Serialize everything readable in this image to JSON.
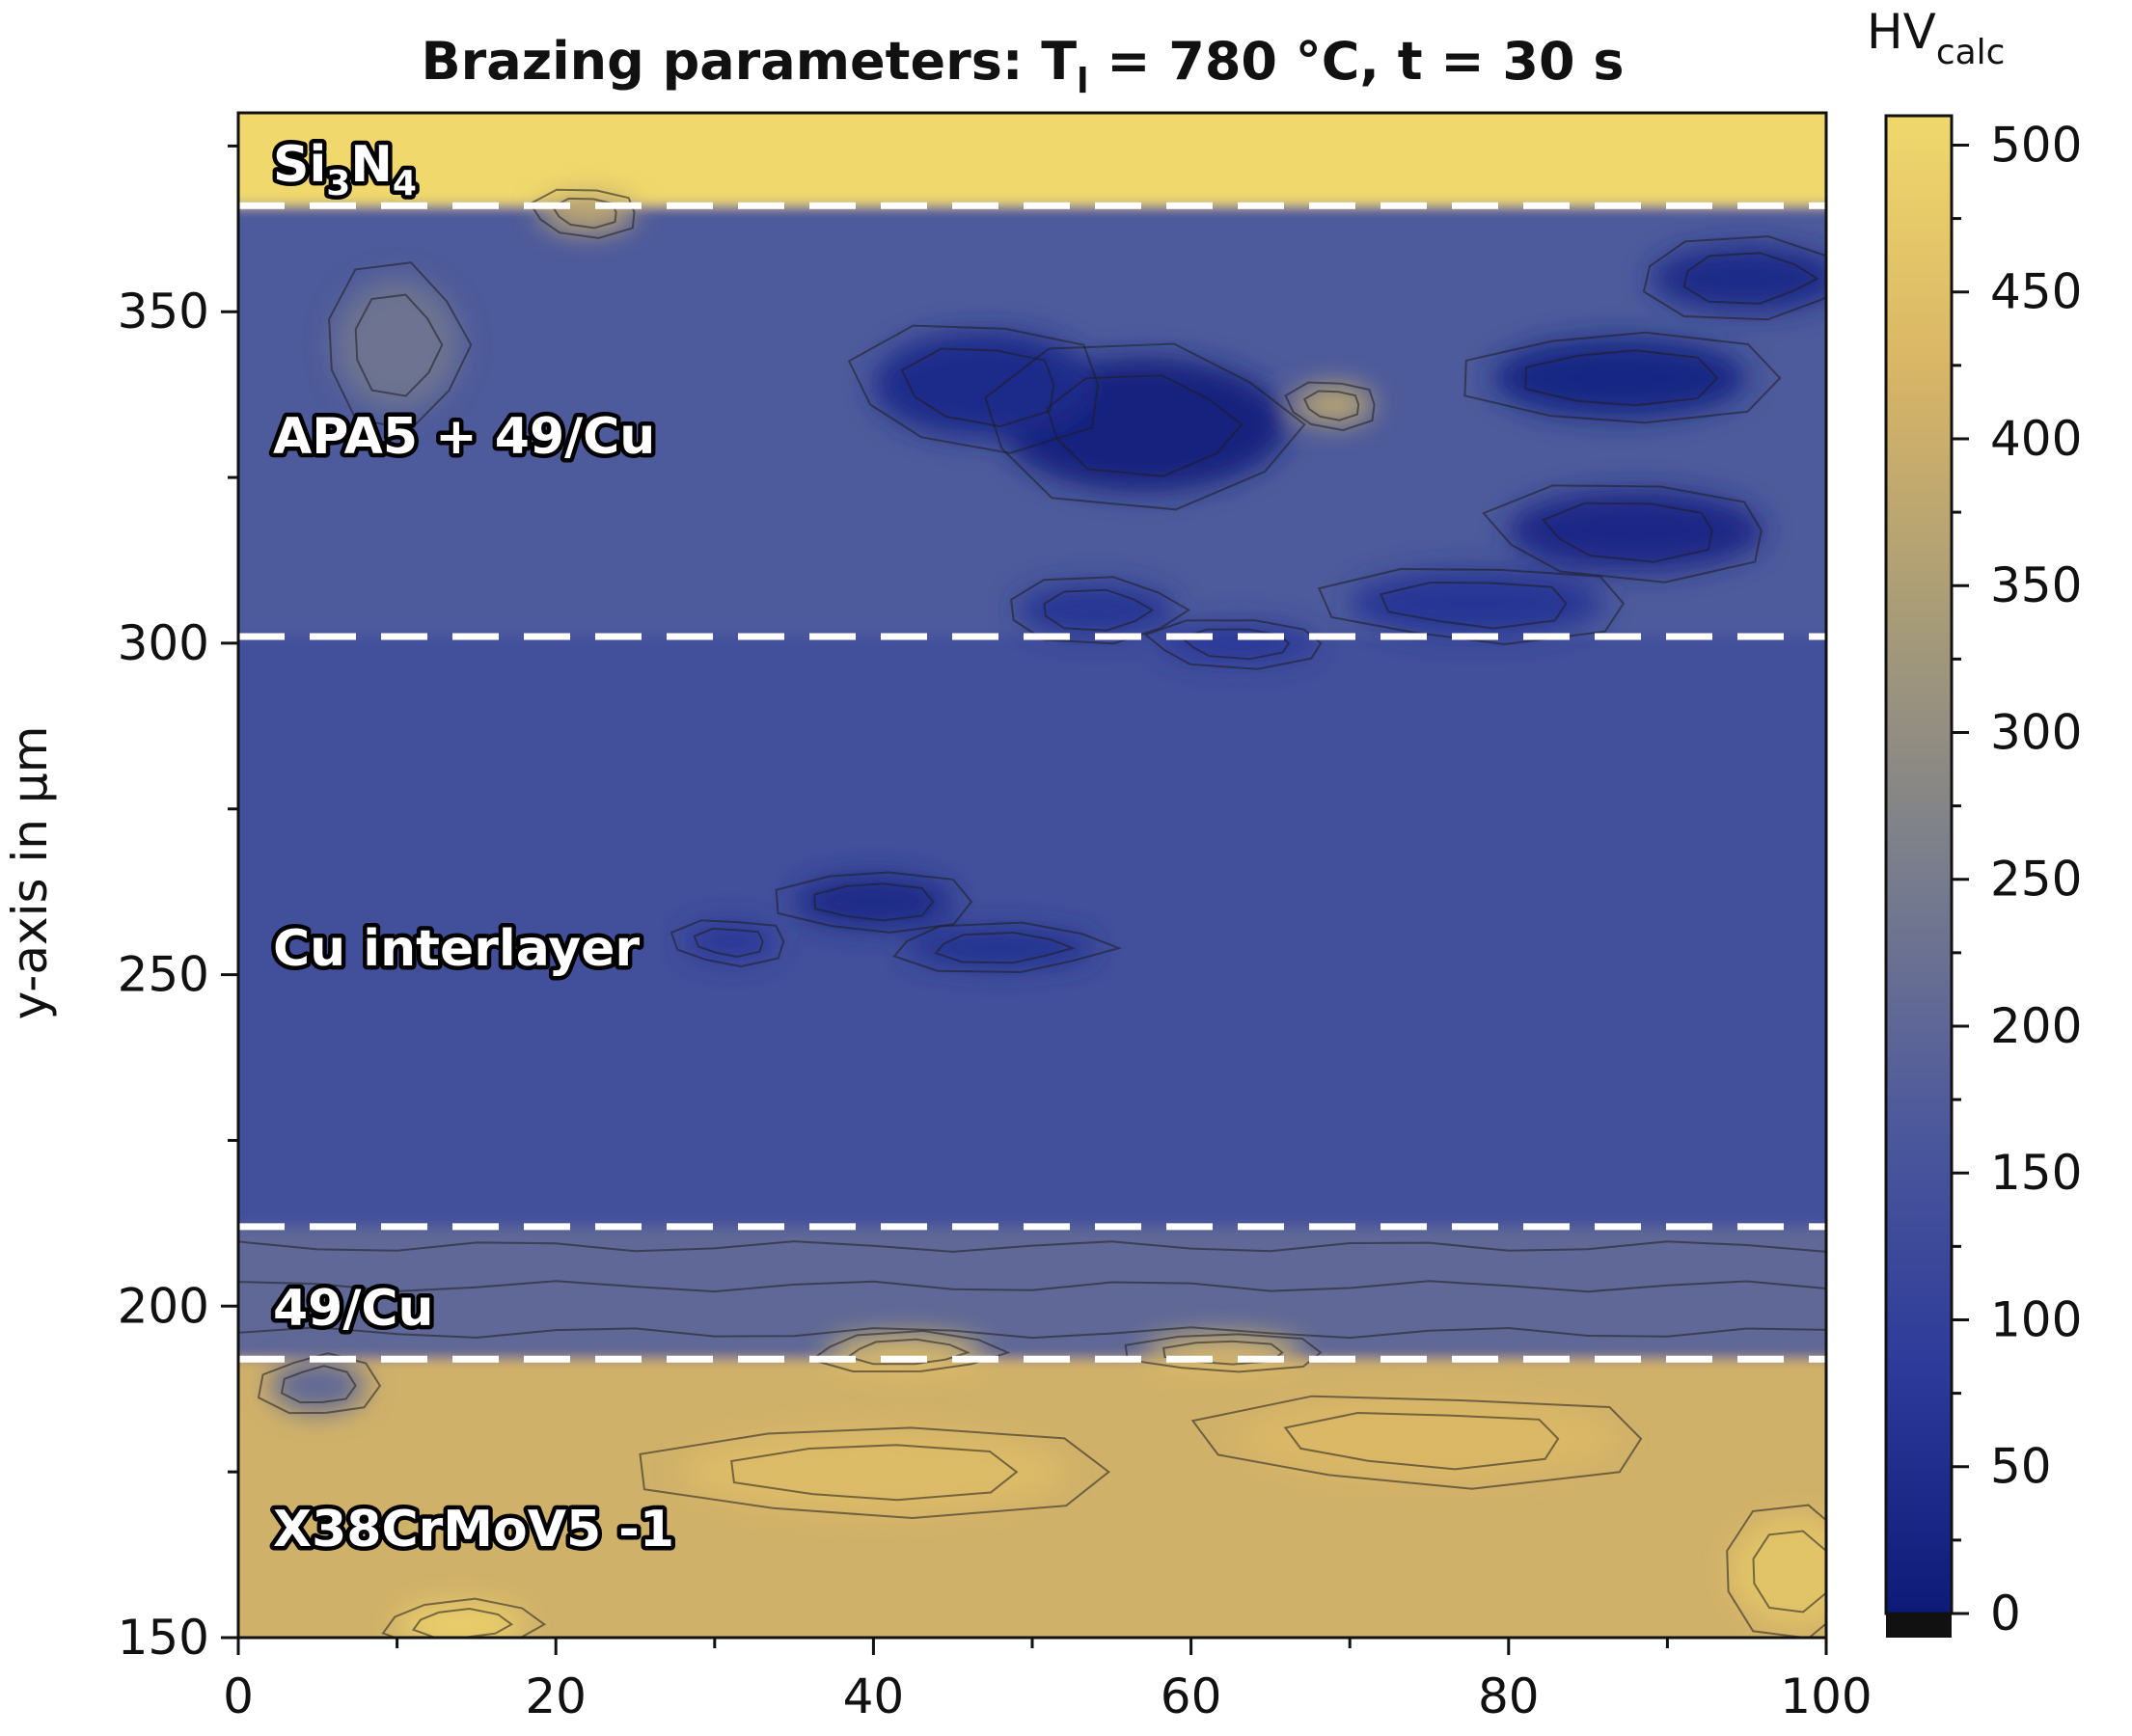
{
  "chart_data": {
    "type": "heatmap",
    "title": "Brazing parameters: T",
    "title_subscript": "l",
    "title_suffix": " = 780 °C, t = 30 s",
    "xlabel": "",
    "ylabel": "y-axis in µm",
    "xlim": [
      0,
      100
    ],
    "ylim": [
      150,
      380
    ],
    "x_ticks": [
      0,
      20,
      40,
      60,
      80,
      100
    ],
    "x_minor_step": 10,
    "y_ticks": [
      150,
      200,
      250,
      300,
      350
    ],
    "y_minor_step": 25,
    "colorbar": {
      "title": "HV",
      "title_subscript": "calc",
      "range": [
        0,
        510
      ],
      "ticks": [
        0,
        50,
        100,
        150,
        200,
        250,
        300,
        350,
        400,
        450,
        500
      ],
      "colors": [
        "#0d1a78",
        "#2e3b9a",
        "#4e5a9b",
        "#7a7e8c",
        "#a89c78",
        "#d9b666",
        "#f0d86c"
      ]
    },
    "boundaries_y": [
      366,
      301,
      212,
      192
    ],
    "regions": [
      {
        "label_main": "Si",
        "label_sub1": "3",
        "label_mid": "N",
        "label_sub2": "4",
        "y_range": [
          366,
          380
        ],
        "hv": 510
      },
      {
        "label": "APA5 + 49/Cu",
        "y_range": [
          301,
          366
        ],
        "hv": 170
      },
      {
        "label": "Cu interlayer",
        "y_range": [
          212,
          301
        ],
        "hv": 140
      },
      {
        "label": "49/Cu",
        "y_range": [
          192,
          212
        ],
        "hv": 200
      },
      {
        "label": "X38CrMoV5 -1",
        "y_range": [
          150,
          192
        ],
        "hv": 410
      }
    ],
    "features": [
      {
        "x": 57,
        "y": 333,
        "rx": 9,
        "ry": 10,
        "hv": 15
      },
      {
        "x": 47,
        "y": 339,
        "rx": 7,
        "ry": 8,
        "hv": 45
      },
      {
        "x": 87,
        "y": 340,
        "rx": 8,
        "ry": 6,
        "hv": 30
      },
      {
        "x": 95,
        "y": 355,
        "rx": 6,
        "ry": 5,
        "hv": 40
      },
      {
        "x": 88,
        "y": 317,
        "rx": 8,
        "ry": 6,
        "hv": 35
      },
      {
        "x": 78,
        "y": 306,
        "rx": 8,
        "ry": 5,
        "hv": 70
      },
      {
        "x": 54,
        "y": 305,
        "rx": 5,
        "ry": 4,
        "hv": 70
      },
      {
        "x": 63,
        "y": 300,
        "rx": 5,
        "ry": 3,
        "hv": 80
      },
      {
        "x": 40,
        "y": 261,
        "rx": 5,
        "ry": 4,
        "hv": 40
      },
      {
        "x": 48,
        "y": 254,
        "rx": 6,
        "ry": 3,
        "hv": 60
      },
      {
        "x": 31,
        "y": 255,
        "rx": 3,
        "ry": 3,
        "hv": 80
      },
      {
        "x": 69,
        "y": 336,
        "rx": 2.5,
        "ry": 3,
        "hv": 370
      },
      {
        "x": 22,
        "y": 365,
        "rx": 3,
        "ry": 3,
        "hv": 380
      },
      {
        "x": 10,
        "y": 345,
        "rx": 4,
        "ry": 10,
        "hv": 230
      },
      {
        "x": 42,
        "y": 193,
        "rx": 5,
        "ry": 2.5,
        "hv": 450
      },
      {
        "x": 62,
        "y": 193,
        "rx": 5,
        "ry": 2.5,
        "hv": 440
      },
      {
        "x": 14,
        "y": 152,
        "rx": 4,
        "ry": 3,
        "hv": 490
      },
      {
        "x": 98,
        "y": 160,
        "rx": 4,
        "ry": 8,
        "hv": 460
      },
      {
        "x": 5,
        "y": 188,
        "rx": 3,
        "ry": 4,
        "hv": 200
      },
      {
        "x": 40,
        "y": 175,
        "rx": 12,
        "ry": 6,
        "hv": 440
      },
      {
        "x": 75,
        "y": 180,
        "rx": 12,
        "ry": 6,
        "hv": 430
      }
    ]
  }
}
